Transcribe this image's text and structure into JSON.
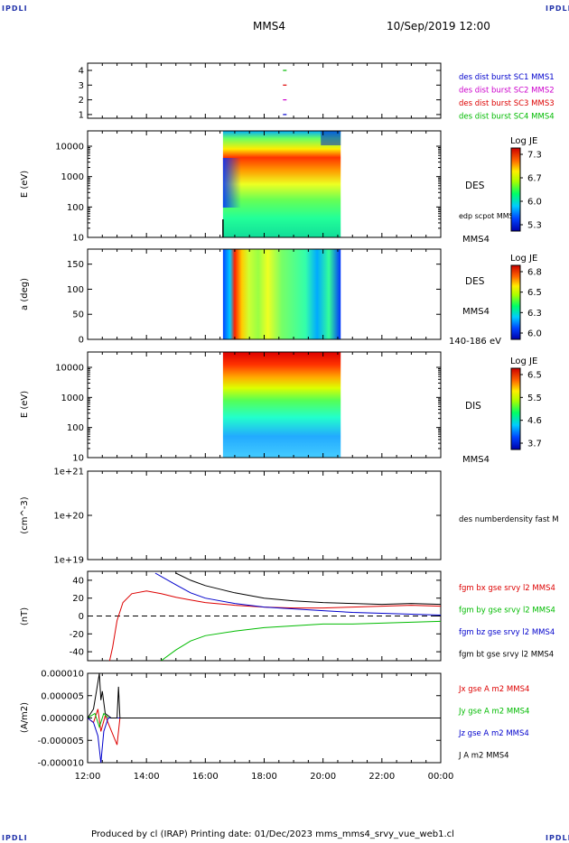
{
  "header": {
    "spacecraft": "MMS4",
    "datetime": "10/Sep/2019 12:00",
    "corner_logo": "IPDLI"
  },
  "footer": {
    "text": "Produced by cl (IRAP)   Printing date: 01/Dec/2023   mms_mms4_srvy_vue_web1.cl"
  },
  "time_axis": {
    "ticks": [
      "12:00",
      "14:00",
      "16:00",
      "18:00",
      "20:00",
      "22:00",
      "00:00"
    ],
    "start_hour": 12,
    "end_hour": 24
  },
  "panels": {
    "burst": {
      "yticks": [
        "4",
        "3",
        "2",
        "1"
      ],
      "legend": [
        {
          "label": "des dist burst SC1 MMS1",
          "color": "#0000cc"
        },
        {
          "label": "des dist burst SC2 MMS2",
          "color": "#cc00cc"
        },
        {
          "label": "des dist burst SC3 MMS3",
          "color": "#dd0000"
        },
        {
          "label": "des dist burst SC4 MMS4",
          "color": "#00bb00"
        }
      ]
    },
    "des_energy": {
      "ylabel": "E (eV)",
      "yticks": [
        "10000",
        "1000",
        "100",
        "10"
      ],
      "species": "DES",
      "extra": "edp scpot MMS4",
      "sc": "MMS4",
      "colorbar": {
        "title": "Log JE",
        "ticks": [
          "7.3",
          "6.7",
          "6.0",
          "5.3"
        ]
      }
    },
    "des_pitch": {
      "ylabel": "a (deg)",
      "yticks": [
        "150",
        "100",
        "50",
        "0"
      ],
      "species": "DES",
      "sc": "MMS4",
      "energy_range": "140-186 eV",
      "colorbar": {
        "title": "Log JE",
        "ticks": [
          "6.8",
          "6.5",
          "6.3",
          "6.0"
        ]
      }
    },
    "dis_energy": {
      "ylabel": "E (eV)",
      "yticks": [
        "10000",
        "1000",
        "100",
        "10"
      ],
      "species": "DIS",
      "sc": "MMS4",
      "colorbar": {
        "title": "Log JE",
        "ticks": [
          "6.5",
          "5.5",
          "4.6",
          "3.7"
        ]
      }
    },
    "density": {
      "ylabel": "(cm^-3)",
      "yticks": [
        "1e+21",
        "1e+20",
        "1e+19"
      ],
      "legend": "des numberdensity fast M"
    },
    "bfield": {
      "ylabel": "(nT)",
      "yticks": [
        "40",
        "20",
        "0",
        "-20",
        "-40"
      ],
      "legend": [
        {
          "label": "fgm bx gse srvy l2 MMS4",
          "color": "#dd0000"
        },
        {
          "label": "fgm by gse srvy l2 MMS4",
          "color": "#00bb00"
        },
        {
          "label": "fgm bz gse srvy l2 MMS4",
          "color": "#0000cc"
        },
        {
          "label": "fgm bt gse srvy l2 MMS4",
          "color": "#000000"
        }
      ]
    },
    "current": {
      "ylabel": "(A/m2)",
      "yticks": [
        "0.000010",
        "0.000005",
        "0.000000",
        "-0.000005",
        "-0.000010"
      ],
      "legend": [
        {
          "label": "Jx gse A m2 MMS4",
          "color": "#dd0000"
        },
        {
          "label": "Jy gse A m2 MMS4",
          "color": "#00bb00"
        },
        {
          "label": "Jz gse A m2 MMS4",
          "color": "#0000cc"
        },
        {
          "label": "J A m2 MMS4",
          "color": "#000000"
        }
      ]
    }
  },
  "chart_data": [
    {
      "type": "scatter",
      "title": "des dist burst",
      "ylim": [
        0.5,
        4.5
      ],
      "series": [
        {
          "name": "des dist burst SC1 MMS1",
          "x": [
            18.7
          ],
          "y": [
            1
          ]
        },
        {
          "name": "des dist burst SC2 MMS2",
          "x": [
            18.7
          ],
          "y": [
            2
          ]
        },
        {
          "name": "des dist burst SC3 MMS3",
          "x": [
            18.7
          ],
          "y": [
            3
          ]
        },
        {
          "name": "des dist burst SC4 MMS4",
          "x": [
            18.7
          ],
          "y": [
            4
          ]
        }
      ]
    },
    {
      "type": "heatmap",
      "ylabel": "E (eV)",
      "log_y": true,
      "ylim": [
        10,
        30000
      ],
      "data_coverage_hours": [
        16.6,
        20.6
      ],
      "colorbar_range": [
        5.3,
        7.3
      ]
    },
    {
      "type": "heatmap",
      "ylabel": "a (deg)",
      "ylim": [
        0,
        180
      ],
      "data_coverage_hours": [
        16.6,
        20.6
      ],
      "colorbar_range": [
        6.0,
        6.8
      ]
    },
    {
      "type": "heatmap",
      "ylabel": "E (eV)",
      "log_y": true,
      "ylim": [
        10,
        30000
      ],
      "data_coverage_hours": [
        16.6,
        20.6
      ],
      "colorbar_range": [
        3.7,
        6.5
      ]
    },
    {
      "type": "line",
      "ylabel": "(cm^-3)",
      "log_y": true,
      "ylim": [
        1e+19,
        1e+21
      ],
      "series": []
    },
    {
      "type": "line",
      "ylabel": "(nT)",
      "ylim": [
        -50,
        50
      ],
      "reference_line": 0,
      "series": [
        {
          "name": "fgm bx gse srvy l2 MMS4",
          "x": [
            12.75,
            12.85,
            13.0,
            13.2,
            13.5,
            14.0,
            14.5,
            15.0,
            15.5,
            16.0,
            17.0,
            18.0,
            19.0,
            20.0,
            21.0,
            22.0,
            23.0,
            24.0
          ],
          "y": [
            -50,
            -35,
            -5,
            15,
            25,
            28,
            25,
            21,
            18,
            15,
            12,
            10,
            9,
            9,
            10,
            11,
            12,
            11
          ]
        },
        {
          "name": "fgm by gse srvy l2 MMS4",
          "x": [
            14.5,
            15.0,
            15.5,
            16.0,
            17.0,
            18.0,
            19.0,
            20.0,
            21.0,
            22.0,
            23.0,
            24.0
          ],
          "y": [
            -50,
            -38,
            -28,
            -22,
            -17,
            -13,
            -11,
            -9,
            -9,
            -8,
            -7,
            -6
          ]
        },
        {
          "name": "fgm bz gse srvy l2 MMS4",
          "x": [
            14.3,
            15.0,
            15.5,
            16.0,
            17.0,
            18.0,
            19.0,
            20.0,
            21.0,
            22.0,
            23.0,
            24.0
          ],
          "y": [
            48,
            35,
            26,
            20,
            14,
            10,
            8,
            6,
            4,
            3,
            2,
            1
          ]
        },
        {
          "name": "fgm bt gse srvy l2 MMS4",
          "x": [
            15.0,
            15.5,
            16.0,
            16.5,
            17.0,
            18.0,
            19.0,
            20.0,
            21.0,
            22.0,
            23.0,
            24.0
          ],
          "y": [
            48,
            40,
            34,
            30,
            26,
            20,
            17,
            15,
            14,
            13,
            14,
            13
          ]
        }
      ]
    },
    {
      "type": "line",
      "ylabel": "(A/m2)",
      "ylim": [
        -1e-05,
        1e-05
      ],
      "series": [
        {
          "name": "Jx gse A m2 MMS4",
          "x": [
            12.0,
            12.2,
            12.35,
            12.45,
            12.6,
            13.0,
            13.1,
            13.2,
            14.0,
            24.0
          ],
          "y": [
            0.0,
            -1e-06,
            2e-06,
            -3e-06,
            5e-07,
            -6e-06,
            0.0,
            0.0,
            0.0,
            0.0
          ]
        },
        {
          "name": "Jy gse A m2 MMS4",
          "x": [
            12.0,
            12.25,
            12.4,
            12.55,
            12.7,
            14.0,
            24.0
          ],
          "y": [
            0.0,
            1e-06,
            -2e-06,
            1e-06,
            0.0,
            0.0,
            0.0
          ]
        },
        {
          "name": "Jz gse A m2 MMS4",
          "x": [
            12.0,
            12.2,
            12.35,
            12.45,
            12.55,
            12.7,
            14.0,
            24.0
          ],
          "y": [
            0.0,
            -1e-06,
            -4e-06,
            -1e-05,
            -3e-06,
            0.0,
            0.0,
            0.0
          ]
        },
        {
          "name": "J A m2 MMS4",
          "x": [
            12.0,
            12.2,
            12.3,
            12.4,
            12.45,
            12.5,
            12.6,
            12.8,
            13.0,
            13.05,
            13.1,
            14.0,
            24.0
          ],
          "y": [
            0.0,
            2e-06,
            6e-06,
            1e-05,
            4e-06,
            6e-06,
            1e-06,
            0.0,
            0.0,
            7e-06,
            0.0,
            0.0,
            0.0
          ]
        }
      ]
    }
  ]
}
